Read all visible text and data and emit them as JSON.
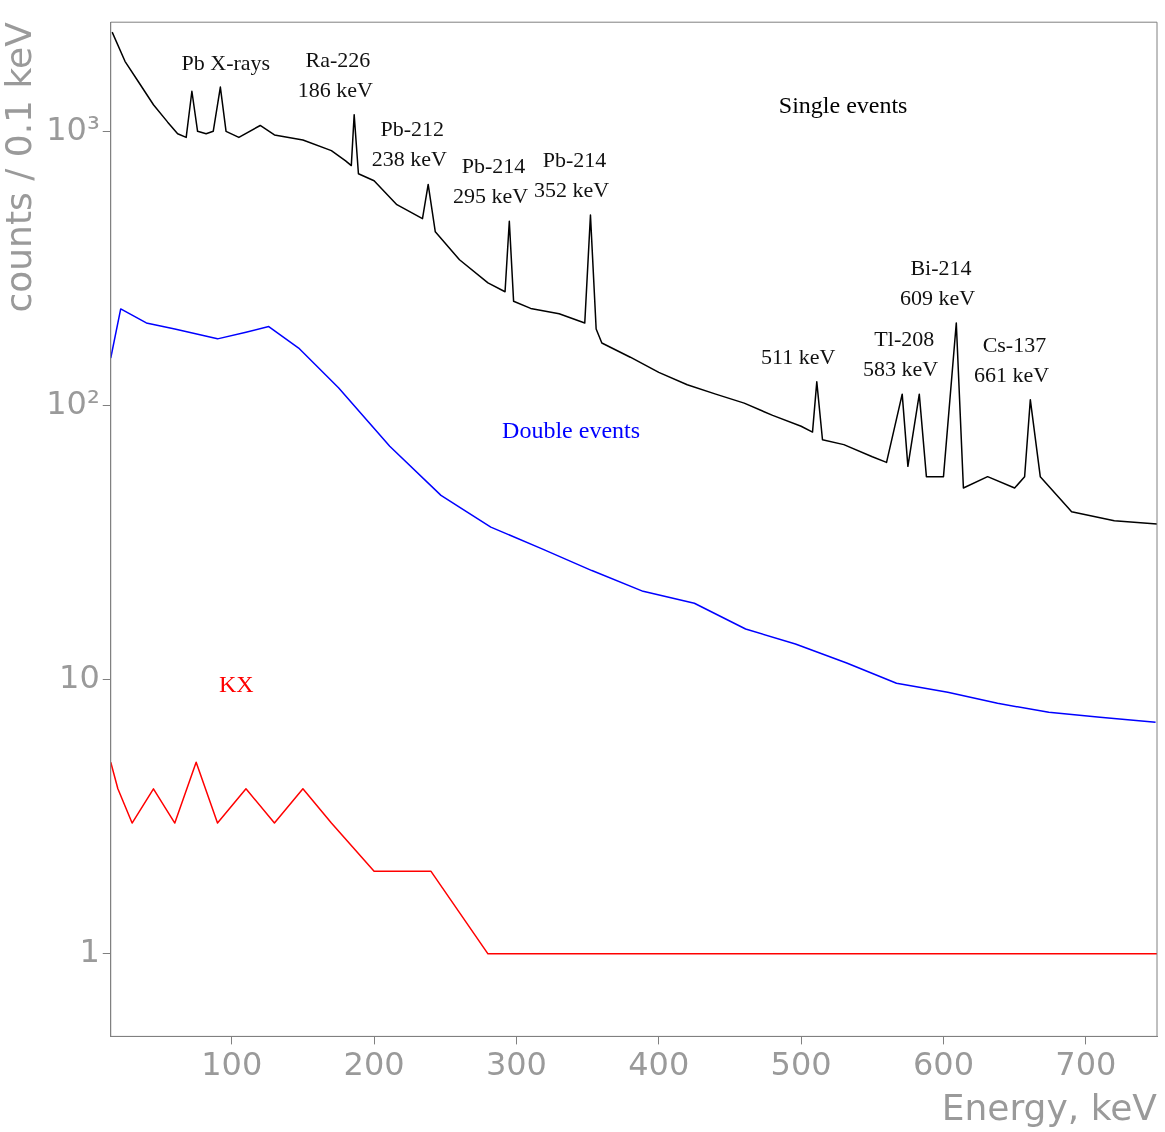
{
  "chart_data": {
    "type": "line",
    "xlabel": "Energy, keV",
    "ylabel": "counts / 0.1 keV",
    "log": "y",
    "xlim": [
      15,
      750
    ],
    "ylim": [
      0.5,
      2500
    ],
    "xticks": [
      100,
      200,
      300,
      400,
      500,
      600,
      700
    ],
    "yticks": [
      1,
      10,
      {
        "value": 100,
        "label": "10²"
      },
      {
        "value": 1000,
        "label": "10³"
      }
    ],
    "grid": false,
    "legend": false,
    "series": [
      {
        "name": "Single events",
        "color": "#000000",
        "x": [
          16,
          25,
          35,
          45,
          55,
          62,
          68,
          72,
          76,
          82,
          87,
          92,
          96,
          105,
          120,
          130,
          150,
          170,
          180,
          184,
          186,
          189,
          200,
          216,
          234,
          238,
          243,
          260,
          280,
          292,
          295,
          298,
          310,
          330,
          348,
          352,
          356,
          360,
          380,
          400,
          420,
          440,
          460,
          480,
          500,
          508,
          511,
          515,
          530,
          550,
          560,
          571,
          575,
          583,
          588,
          600,
          609,
          614,
          631,
          650,
          657,
          661,
          668,
          690,
          720,
          750
        ],
        "values": [
          2300,
          1800,
          1500,
          1250,
          1080,
          980,
          950,
          1400,
          1000,
          980,
          1000,
          1450,
          1000,
          950,
          1050,
          970,
          930,
          850,
          780,
          750,
          1150,
          700,
          660,
          540,
          480,
          640,
          430,
          340,
          280,
          260,
          470,
          240,
          226,
          216,
          200,
          495,
          190,
          169,
          150,
          132,
          119,
          110,
          102,
          92,
          84,
          80,
          122,
          75,
          72,
          65,
          62,
          110,
          60,
          110,
          55,
          55,
          200,
          50,
          55,
          50,
          55,
          105,
          55,
          41,
          38,
          37
        ]
      },
      {
        "name": "Double events",
        "color": "#0000ff",
        "x": [
          15,
          22,
          40,
          60,
          90,
          110,
          126,
          147,
          175,
          211,
          247,
          282,
          318,
          353,
          389,
          425,
          461,
          496,
          532,
          567,
          603,
          638,
          674,
          710,
          749
        ],
        "values": [
          149,
          225,
          200,
          190,
          175,
          185,
          194,
          162,
          116,
          71,
          47,
          36,
          30,
          25,
          21,
          19,
          15.3,
          13.5,
          11.5,
          9.7,
          9,
          8.2,
          7.6,
          7.3,
          7
        ]
      },
      {
        "name": "KX",
        "color": "#ff0000",
        "x": [
          15,
          20,
          30,
          45,
          60,
          75,
          90,
          110,
          130,
          150,
          170,
          200,
          240,
          280,
          320,
          360,
          400,
          440,
          480,
          520,
          560,
          600,
          640,
          680,
          720,
          750
        ],
        "values": [
          5,
          4,
          3,
          4,
          3,
          5,
          3,
          4,
          3,
          4,
          3,
          2,
          2,
          1,
          1,
          1,
          1,
          1,
          1,
          1,
          1,
          1,
          1,
          1,
          1,
          1
        ]
      }
    ],
    "annotations": [
      "Pb X-rays",
      {
        "text": "Ra-226\n186 keV",
        "x": 186,
        "y": 1150
      },
      {
        "text": "Pb-212\n238 keV",
        "x": 238,
        "y": 640
      },
      {
        "text": "Pb-214\n295 keV",
        "x": 295,
        "y": 470
      },
      {
        "text": "Pb-214\n352 keV",
        "x": 352,
        "y": 495
      },
      {
        "text": "511 keV",
        "x": 511,
        "y": 122
      },
      {
        "text": "Tl-208\n583 keV",
        "x": 583,
        "y": 110
      },
      {
        "text": "Bi-214\n609 keV",
        "x": 609,
        "y": 200
      },
      {
        "text": "Cs-137\n661 keV",
        "x": 661,
        "y": 105
      }
    ]
  }
}
